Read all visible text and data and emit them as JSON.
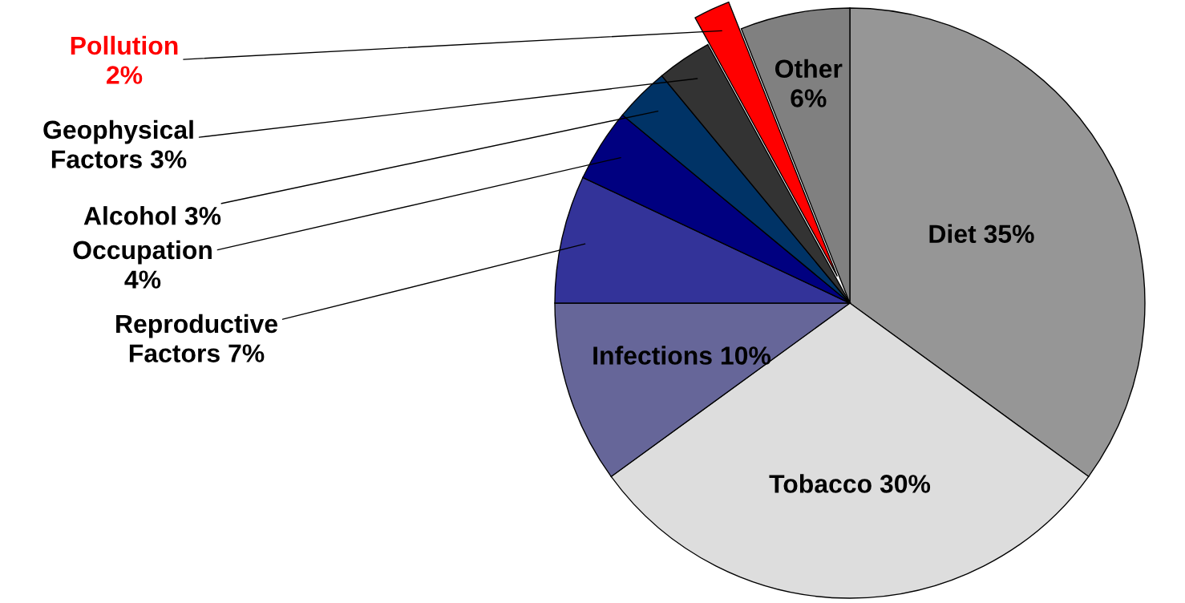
{
  "chart_data": {
    "type": "pie",
    "categories": [
      "Diet",
      "Tobacco",
      "Infections",
      "Reproductive Factors",
      "Occupation",
      "Alcohol",
      "Geophysical Factors",
      "Pollution",
      "Other"
    ],
    "values": [
      35,
      30,
      10,
      7,
      4,
      3,
      3,
      2,
      6
    ],
    "value_labels": [
      "35%",
      "30%",
      "10%",
      "7%",
      "4%",
      "3%",
      "3%",
      "2%",
      "6%"
    ],
    "colors": [
      "#969696",
      "#dddddd",
      "#666699",
      "#333399",
      "#000080",
      "#003366",
      "#333333",
      "#ff0000",
      "#808080"
    ],
    "legend": false
  }
}
